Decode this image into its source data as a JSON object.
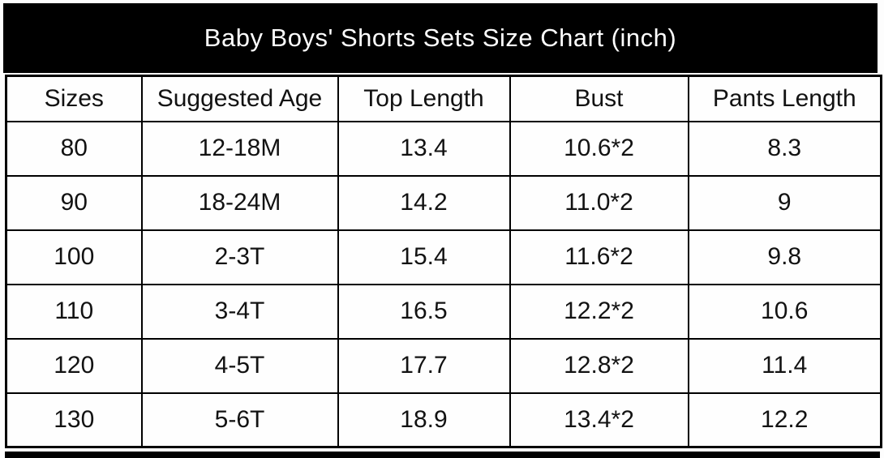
{
  "title": "Baby Boys' Shorts Sets Size Chart (inch)",
  "colors": {
    "banner_bg": "#000000",
    "banner_text": "#ffffff",
    "table_border": "#000000",
    "cell_bg": "#fefefe",
    "cell_text": "#121212"
  },
  "chart_data": {
    "type": "table",
    "title": "Baby Boys' Shorts Sets Size Chart (inch)",
    "columns": [
      "Sizes",
      "Suggested Age",
      "Top Length",
      "Bust",
      "Pants Length"
    ],
    "rows": [
      [
        "80",
        "12-18M",
        "13.4",
        "10.6*2",
        "8.3"
      ],
      [
        "90",
        "18-24M",
        "14.2",
        "11.0*2",
        "9"
      ],
      [
        "100",
        "2-3T",
        "15.4",
        "11.6*2",
        "9.8"
      ],
      [
        "110",
        "3-4T",
        "16.5",
        "12.2*2",
        "10.6"
      ],
      [
        "120",
        "4-5T",
        "17.7",
        "12.8*2",
        "11.4"
      ],
      [
        "130",
        "5-6T",
        "18.9",
        "13.4*2",
        "12.2"
      ]
    ],
    "units": "inch",
    "layout": "header row on top, 6 size rows, black title banner above table"
  }
}
